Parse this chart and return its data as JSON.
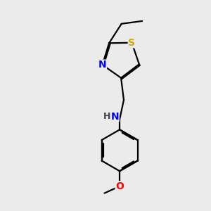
{
  "background_color": "#ebebeb",
  "atom_colors": {
    "S": "#ccaa00",
    "N": "#0000ff",
    "O": "#ff0000",
    "C": "#000000",
    "H": "#444444"
  },
  "bond_color": "#000000",
  "bond_width": 1.6,
  "dbo": 0.018,
  "font_size_atom": 10,
  "font_size_h": 9
}
